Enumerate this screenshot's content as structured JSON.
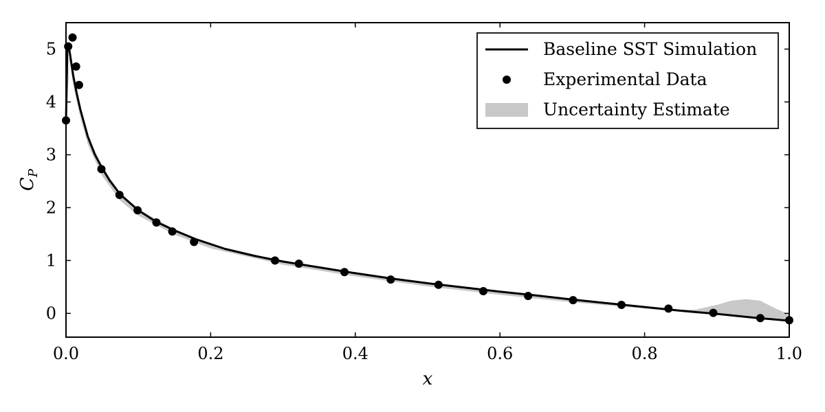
{
  "chart_data": {
    "type": "line",
    "title": "",
    "xlabel": "x",
    "ylabel_main": "C",
    "ylabel_sub": "P",
    "xlim": [
      0.0,
      1.0
    ],
    "ylim": [
      -0.45,
      5.5
    ],
    "xticks": [
      0.0,
      0.2,
      0.4,
      0.6,
      0.8,
      1.0
    ],
    "xtick_labels": [
      "0.0",
      "0.2",
      "0.4",
      "0.6",
      "0.8",
      "1.0"
    ],
    "yticks": [
      0,
      1,
      2,
      3,
      4,
      5
    ],
    "ytick_labels": [
      "0",
      "1",
      "2",
      "3",
      "4",
      "5"
    ],
    "grid": false,
    "legend_position": "top-right",
    "series": [
      {
        "name": "Baseline SST Simulation",
        "kind": "line",
        "color": "#000000",
        "x": [
          0.0,
          0.002,
          0.005,
          0.01,
          0.015,
          0.02,
          0.03,
          0.04,
          0.05,
          0.06,
          0.075,
          0.1,
          0.125,
          0.15,
          0.18,
          0.22,
          0.26,
          0.3,
          0.35,
          0.4,
          0.45,
          0.5,
          0.55,
          0.6,
          0.65,
          0.7,
          0.75,
          0.8,
          0.85,
          0.9,
          0.95,
          1.0
        ],
        "y": [
          3.65,
          5.1,
          4.95,
          4.5,
          4.15,
          3.85,
          3.35,
          3.0,
          2.75,
          2.52,
          2.25,
          1.95,
          1.73,
          1.57,
          1.4,
          1.22,
          1.09,
          0.98,
          0.87,
          0.76,
          0.66,
          0.57,
          0.49,
          0.41,
          0.34,
          0.26,
          0.19,
          0.12,
          0.05,
          -0.01,
          -0.08,
          -0.14
        ]
      },
      {
        "name": "Experimental Data",
        "kind": "scatter",
        "color": "#000000",
        "x": [
          0.0,
          0.003,
          0.009,
          0.014,
          0.018,
          0.049,
          0.074,
          0.099,
          0.125,
          0.147,
          0.177,
          0.289,
          0.322,
          0.385,
          0.449,
          0.515,
          0.577,
          0.639,
          0.701,
          0.768,
          0.833,
          0.895,
          0.96,
          1.0
        ],
        "y": [
          3.65,
          5.05,
          5.22,
          4.67,
          4.32,
          2.73,
          2.24,
          1.95,
          1.72,
          1.55,
          1.35,
          1.0,
          0.94,
          0.78,
          0.64,
          0.54,
          0.42,
          0.33,
          0.25,
          0.16,
          0.09,
          0.01,
          -0.09,
          -0.13
        ]
      },
      {
        "name": "Uncertainty Estimate",
        "kind": "band",
        "color": "#c8c8c8",
        "x": [
          0.0,
          0.005,
          0.01,
          0.02,
          0.03,
          0.05,
          0.075,
          0.1,
          0.15,
          0.2,
          0.3,
          0.4,
          0.5,
          0.6,
          0.7,
          0.8,
          0.85,
          0.87,
          0.9,
          0.92,
          0.94,
          0.96,
          0.98,
          1.0
        ],
        "lower": [
          3.6,
          4.8,
          4.3,
          3.7,
          3.2,
          2.6,
          2.13,
          1.85,
          1.49,
          1.23,
          0.92,
          0.7,
          0.51,
          0.35,
          0.21,
          0.09,
          0.03,
          0.0,
          -0.02,
          -0.04,
          -0.06,
          -0.09,
          -0.12,
          -0.16
        ],
        "upper": [
          3.7,
          5.0,
          4.55,
          3.88,
          3.38,
          2.78,
          2.28,
          1.97,
          1.59,
          1.3,
          0.99,
          0.77,
          0.58,
          0.42,
          0.27,
          0.13,
          0.07,
          0.07,
          0.16,
          0.24,
          0.27,
          0.24,
          0.1,
          -0.02
        ]
      }
    ]
  }
}
